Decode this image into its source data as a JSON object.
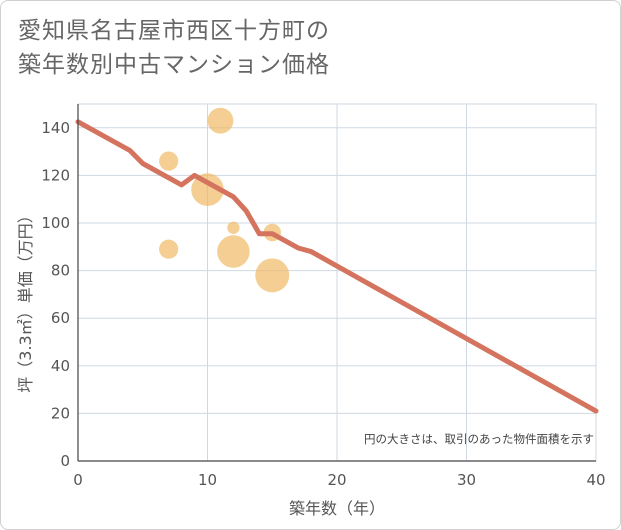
{
  "chart_data": {
    "type": "scatter",
    "title": "愛知県名古屋市西区十方町の築年数別中古マンション価格",
    "title_lines": [
      "愛知県名古屋市西区十方町の",
      "築年数別中古マンション価格"
    ],
    "xlabel": "築年数（年）",
    "ylabel": "坪（3.3㎡）単価（万円）",
    "xlim": [
      0,
      40
    ],
    "ylim": [
      0,
      150
    ],
    "x_ticks": [
      0,
      10,
      20,
      30,
      40
    ],
    "y_ticks": [
      0,
      20,
      40,
      60,
      80,
      100,
      120,
      140
    ],
    "grid": true,
    "note": "円の大きさは、取引のあった物件面積を示す",
    "colors": {
      "bubble": "#f0b965",
      "trend": "#d4735e",
      "grid": "#cfd8e3",
      "axis": "#444444"
    },
    "series": [
      {
        "name": "transactions",
        "type": "bubble",
        "points": [
          {
            "x": 11,
            "y": 143,
            "size": 3
          },
          {
            "x": 7,
            "y": 126,
            "size": 1.5
          },
          {
            "x": 10,
            "y": 114,
            "size": 5
          },
          {
            "x": 12,
            "y": 98,
            "size": 0.5
          },
          {
            "x": 15,
            "y": 96,
            "size": 1.2
          },
          {
            "x": 7,
            "y": 89,
            "size": 1.5
          },
          {
            "x": 12,
            "y": 88,
            "size": 5
          },
          {
            "x": 15,
            "y": 78,
            "size": 5.5
          }
        ]
      },
      {
        "name": "trend",
        "type": "line",
        "x": [
          0,
          4,
          5,
          8,
          9,
          12,
          13,
          14,
          15,
          17,
          18,
          40
        ],
        "y": [
          142.5,
          130.5,
          125,
          116,
          120,
          111,
          105,
          95.5,
          95.5,
          89.5,
          88,
          21
        ]
      }
    ]
  }
}
